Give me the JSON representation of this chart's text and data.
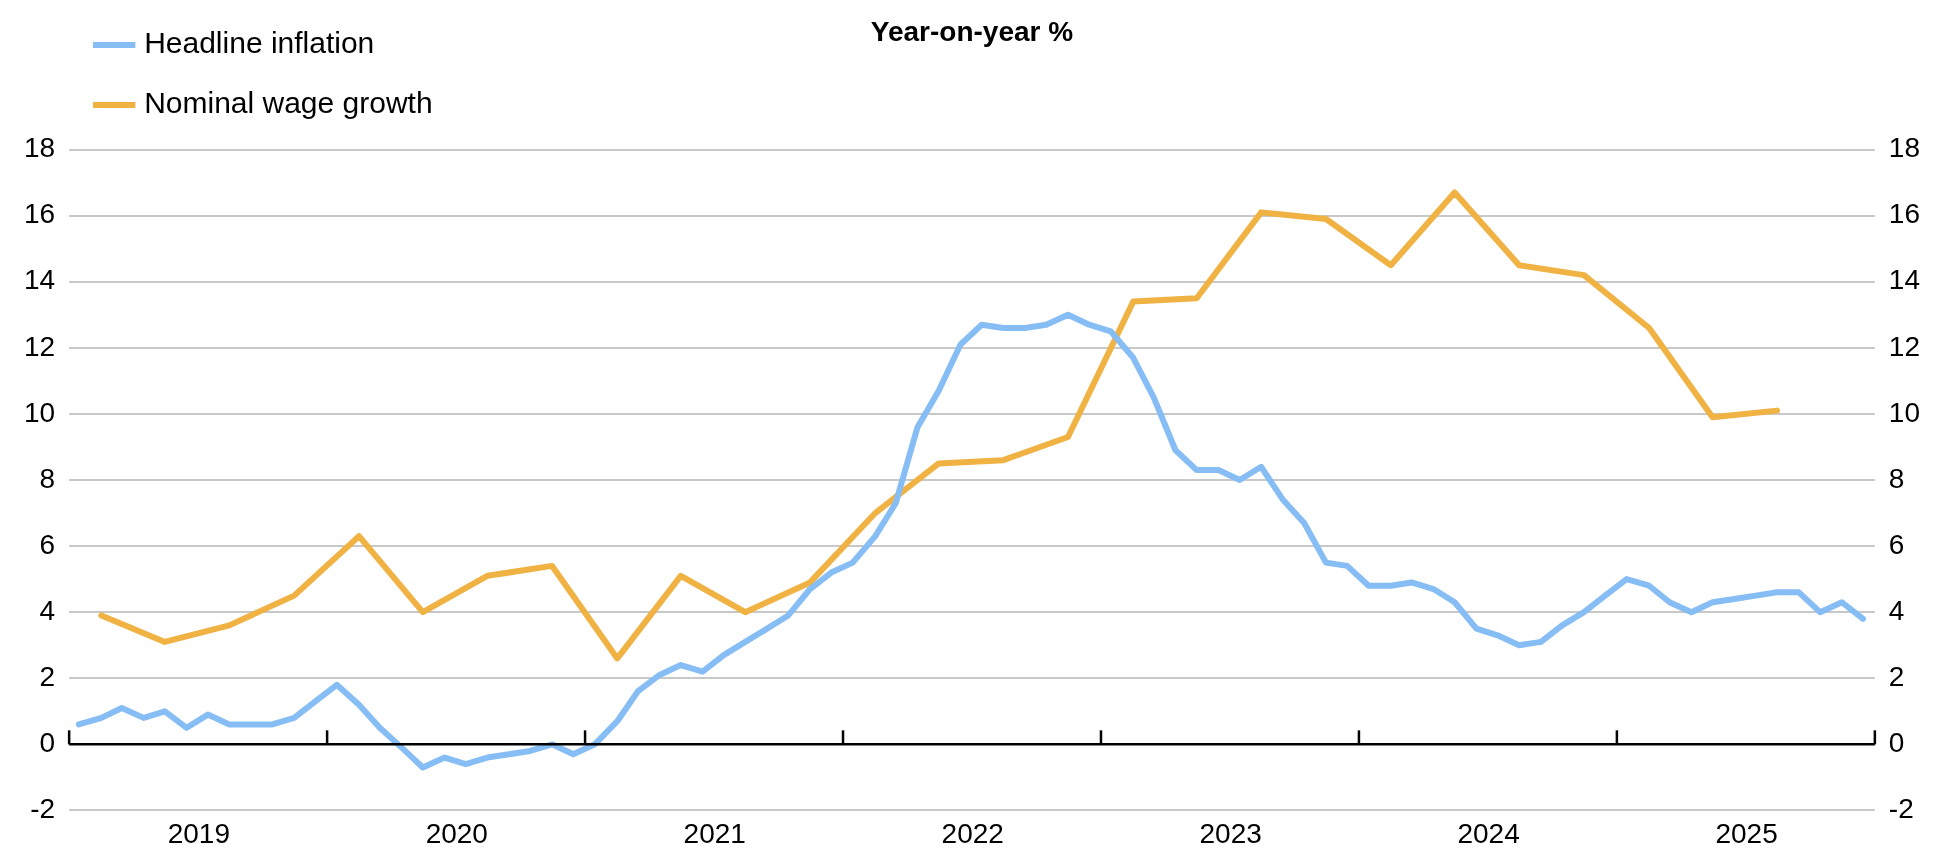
{
  "chart_data": {
    "type": "line",
    "title": "Year-on-year %",
    "xlim": [
      "2019-01-01",
      "2026-01-01"
    ],
    "xticks": [
      {
        "value": "2019-01-01",
        "label": null
      },
      {
        "value": "2019-07-02",
        "label": "2019"
      },
      {
        "value": "2020-01-01",
        "label": null
      },
      {
        "value": "2020-07-02",
        "label": "2020"
      },
      {
        "value": "2021-01-01",
        "label": null
      },
      {
        "value": "2021-07-02",
        "label": "2021"
      },
      {
        "value": "2022-01-01",
        "label": null
      },
      {
        "value": "2022-07-02",
        "label": "2022"
      },
      {
        "value": "2023-01-01",
        "label": null
      },
      {
        "value": "2023-07-02",
        "label": "2023"
      },
      {
        "value": "2024-01-01",
        "label": null
      },
      {
        "value": "2024-07-02",
        "label": "2024"
      },
      {
        "value": "2025-01-01",
        "label": null
      },
      {
        "value": "2025-07-02",
        "label": "2025"
      },
      {
        "value": "2026-01-01",
        "label": null
      }
    ],
    "ylim": [
      -2,
      18
    ],
    "yticks": [
      -2,
      0,
      2,
      4,
      6,
      8,
      10,
      12,
      14,
      16,
      18
    ],
    "y2lim": [
      -2,
      18
    ],
    "y2ticks": [
      -2,
      0,
      2,
      4,
      6,
      8,
      10,
      12,
      14,
      16,
      18
    ],
    "grid": "y",
    "legend": "top left",
    "marker": "none",
    "line_style": "solid",
    "series": [
      {
        "name": "Nominal wage growth",
        "color": "#f0b243",
        "x": [
          "2019-02-15",
          "2019-05-15",
          "2019-08-15",
          "2019-11-15",
          "2020-02-15",
          "2020-05-15",
          "2020-08-15",
          "2020-11-15",
          "2021-02-15",
          "2021-05-15",
          "2021-08-15",
          "2021-11-15",
          "2022-02-15",
          "2022-05-15",
          "2022-08-15",
          "2022-11-15",
          "2023-02-15",
          "2023-05-15",
          "2023-08-15",
          "2023-11-15",
          "2024-02-15",
          "2024-05-15",
          "2024-08-15",
          "2024-11-15",
          "2025-02-15",
          "2025-05-15",
          "2025-08-15"
        ],
        "values": [
          3.9,
          3.1,
          3.6,
          4.5,
          6.3,
          4.0,
          5.1,
          5.4,
          2.6,
          5.1,
          4.0,
          4.9,
          7.0,
          8.5,
          8.6,
          9.3,
          13.4,
          13.5,
          16.1,
          15.9,
          14.5,
          16.7,
          14.5,
          14.2,
          12.6,
          9.9,
          10.1
        ]
      },
      {
        "name": "Headline inflation",
        "color": "#86bdf5",
        "x": [
          "2019-01-15",
          "2019-02-15",
          "2019-03-15",
          "2019-04-15",
          "2019-05-15",
          "2019-06-15",
          "2019-07-15",
          "2019-08-15",
          "2019-09-15",
          "2019-10-15",
          "2019-11-15",
          "2019-12-15",
          "2020-01-15",
          "2020-02-15",
          "2020-03-15",
          "2020-04-15",
          "2020-05-15",
          "2020-06-15",
          "2020-07-15",
          "2020-08-15",
          "2020-09-15",
          "2020-10-15",
          "2020-11-15",
          "2020-12-15",
          "2021-01-15",
          "2021-02-15",
          "2021-03-15",
          "2021-04-15",
          "2021-05-15",
          "2021-06-15",
          "2021-07-15",
          "2021-08-15",
          "2021-09-15",
          "2021-10-15",
          "2021-11-15",
          "2021-12-15",
          "2022-01-15",
          "2022-02-15",
          "2022-03-15",
          "2022-04-15",
          "2022-05-15",
          "2022-06-15",
          "2022-07-15",
          "2022-08-15",
          "2022-09-15",
          "2022-10-15",
          "2022-11-15",
          "2022-12-15",
          "2023-01-15",
          "2023-02-15",
          "2023-03-15",
          "2023-04-15",
          "2023-05-15",
          "2023-06-15",
          "2023-07-15",
          "2023-08-15",
          "2023-09-15",
          "2023-10-15",
          "2023-11-15",
          "2023-12-15",
          "2024-01-15",
          "2024-02-15",
          "2024-03-15",
          "2024-04-15",
          "2024-05-15",
          "2024-06-15",
          "2024-07-15",
          "2024-08-15",
          "2024-09-15",
          "2024-10-15",
          "2024-11-15",
          "2024-12-15",
          "2025-01-15",
          "2025-02-15",
          "2025-03-15",
          "2025-04-15",
          "2025-05-15",
          "2025-06-15",
          "2025-07-15",
          "2025-08-15",
          "2025-09-15",
          "2025-10-15",
          "2025-11-15",
          "2025-12-15"
        ],
        "values": [
          0.6,
          0.8,
          1.1,
          0.8,
          1.0,
          0.5,
          0.9,
          0.6,
          0.6,
          0.6,
          0.8,
          1.3,
          1.8,
          1.2,
          0.5,
          -0.1,
          -0.7,
          -0.4,
          -0.6,
          -0.4,
          -0.3,
          -0.2,
          0.0,
          -0.3,
          0.0,
          0.7,
          1.6,
          2.1,
          2.4,
          2.2,
          2.7,
          3.1,
          3.5,
          3.9,
          4.7,
          5.2,
          5.5,
          6.3,
          7.3,
          9.6,
          10.7,
          12.1,
          12.7,
          12.6,
          12.6,
          12.7,
          13.0,
          12.7,
          12.5,
          11.7,
          10.5,
          8.9,
          8.3,
          8.3,
          8.0,
          8.4,
          7.4,
          6.7,
          5.5,
          5.4,
          4.8,
          4.8,
          4.9,
          4.7,
          4.3,
          3.5,
          3.3,
          3.0,
          3.1,
          3.6,
          4.0,
          4.5,
          5.0,
          4.8,
          4.3,
          4.0,
          4.3,
          4.4,
          4.5,
          4.6,
          4.6,
          4.0,
          4.3,
          3.8
        ]
      }
    ]
  }
}
